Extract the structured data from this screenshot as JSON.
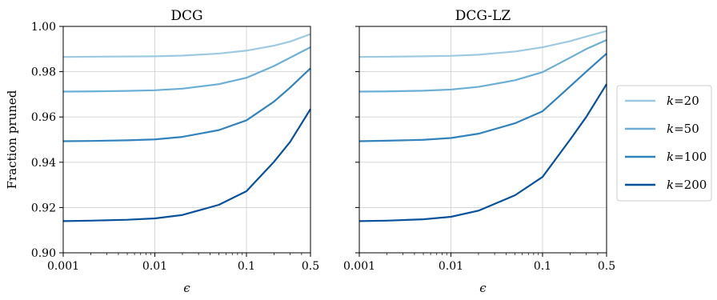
{
  "chart_data": [
    {
      "type": "line",
      "title": "DCG",
      "xlabel": "ϵ",
      "ylabel": "Fraction pruned",
      "xscale": "log",
      "xlim": [
        0.001,
        0.5
      ],
      "ylim": [
        0.9,
        1.0
      ],
      "xticks": [
        0.001,
        0.01,
        0.1,
        0.5
      ],
      "xtick_labels": [
        "0.001",
        "0.01",
        "0.1",
        "0.5"
      ],
      "yticks": [
        0.9,
        0.92,
        0.94,
        0.96,
        0.98,
        1.0
      ],
      "ytick_labels": [
        "0.90",
        "0.92",
        "0.94",
        "0.96",
        "0.98",
        "1.00"
      ],
      "grid": true,
      "x": [
        0.001,
        0.002,
        0.005,
        0.01,
        0.02,
        0.05,
        0.1,
        0.2,
        0.3,
        0.5
      ],
      "series": [
        {
          "name": "k=20",
          "color": "#9ecae1",
          "values": [
            0.9865,
            0.9866,
            0.9867,
            0.9868,
            0.9871,
            0.988,
            0.9893,
            0.9915,
            0.9933,
            0.9966
          ]
        },
        {
          "name": "k=50",
          "color": "#6baed6",
          "values": [
            0.9712,
            0.9713,
            0.9715,
            0.9718,
            0.9725,
            0.9745,
            0.9773,
            0.9825,
            0.9862,
            0.9908
          ]
        },
        {
          "name": "k=100",
          "color": "#3182bd",
          "values": [
            0.9493,
            0.9494,
            0.9497,
            0.9501,
            0.9512,
            0.9542,
            0.9585,
            0.9668,
            0.973,
            0.9815
          ]
        },
        {
          "name": "k=200",
          "color": "#08519c",
          "values": [
            0.914,
            0.9142,
            0.9146,
            0.9152,
            0.9167,
            0.9212,
            0.9272,
            0.9402,
            0.949,
            0.9635
          ]
        }
      ]
    },
    {
      "type": "line",
      "title": "DCG-LZ",
      "xlabel": "ϵ",
      "ylabel": "",
      "xscale": "log",
      "xlim": [
        0.001,
        0.5
      ],
      "ylim": [
        0.9,
        1.0
      ],
      "xticks": [
        0.001,
        0.01,
        0.1,
        0.5
      ],
      "xtick_labels": [
        "0.001",
        "0.01",
        "0.1",
        "0.5"
      ],
      "yticks": [
        0.9,
        0.92,
        0.94,
        0.96,
        0.98,
        1.0
      ],
      "ytick_labels": [],
      "grid": true,
      "x": [
        0.001,
        0.002,
        0.005,
        0.01,
        0.02,
        0.05,
        0.1,
        0.2,
        0.3,
        0.5
      ],
      "series": [
        {
          "name": "k=20",
          "color": "#9ecae1",
          "values": [
            0.9865,
            0.9866,
            0.9868,
            0.987,
            0.9875,
            0.9889,
            0.9908,
            0.9935,
            0.9955,
            0.998
          ]
        },
        {
          "name": "k=50",
          "color": "#6baed6",
          "values": [
            0.9712,
            0.9713,
            0.9716,
            0.9721,
            0.9733,
            0.9762,
            0.9798,
            0.9862,
            0.99,
            0.994
          ]
        },
        {
          "name": "k=100",
          "color": "#3182bd",
          "values": [
            0.9493,
            0.9495,
            0.9499,
            0.9507,
            0.9526,
            0.9572,
            0.9625,
            0.9735,
            0.98,
            0.988
          ]
        },
        {
          "name": "k=200",
          "color": "#08519c",
          "values": [
            0.914,
            0.9142,
            0.9148,
            0.9159,
            0.9186,
            0.9254,
            0.9335,
            0.95,
            0.96,
            0.9745
          ]
        }
      ]
    }
  ],
  "legend": {
    "placement": "right",
    "entries": [
      {
        "prefix": "k",
        "suffix": "=20",
        "color": "#9ecae1"
      },
      {
        "prefix": "k",
        "suffix": "=50",
        "color": "#6baed6"
      },
      {
        "prefix": "k",
        "suffix": "=100",
        "color": "#3182bd"
      },
      {
        "prefix": "k",
        "suffix": "=200",
        "color": "#08519c"
      }
    ]
  }
}
